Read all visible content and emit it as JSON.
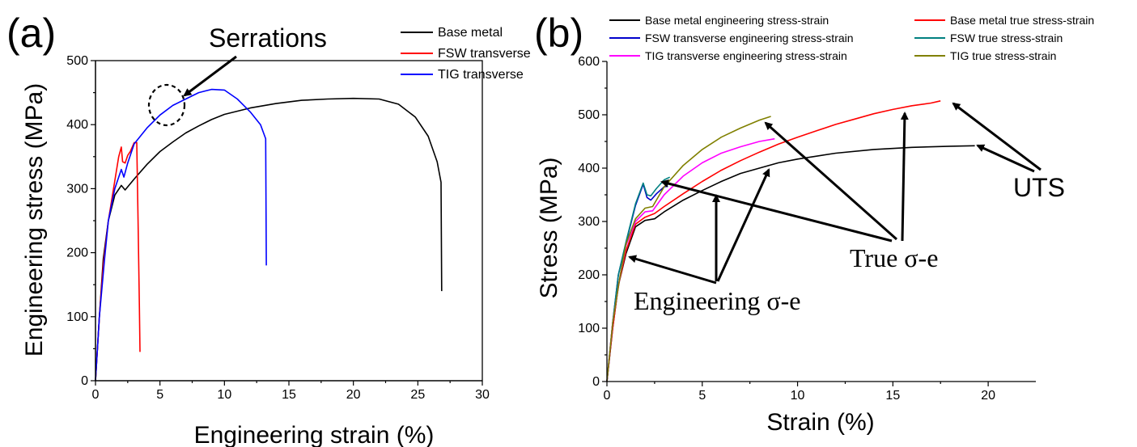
{
  "chart_data": [
    {
      "panel": "(a)",
      "type": "line",
      "xlabel": "Engineering strain (%)",
      "ylabel": "Engineering stress (MPa)",
      "xlim": [
        0,
        30
      ],
      "ylim": [
        0,
        500
      ],
      "xticks": [
        0,
        5,
        10,
        15,
        20,
        25,
        30
      ],
      "yticks": [
        0,
        100,
        200,
        300,
        400,
        500
      ],
      "legend_position": "top-right",
      "annotations": [
        "Serrations"
      ],
      "series": [
        {
          "name": "Base metal",
          "color": "#000000",
          "points": [
            [
              0,
              0
            ],
            [
              0.3,
              100
            ],
            [
              0.6,
              190
            ],
            [
              1,
              250
            ],
            [
              1.5,
              290
            ],
            [
              2,
              305
            ],
            [
              2.3,
              298
            ],
            [
              3,
              315
            ],
            [
              4,
              338
            ],
            [
              5,
              358
            ],
            [
              6,
              373
            ],
            [
              7,
              387
            ],
            [
              8,
              398
            ],
            [
              9,
              408
            ],
            [
              10,
              416
            ],
            [
              12,
              426
            ],
            [
              14,
              433
            ],
            [
              16,
              438
            ],
            [
              18,
              440
            ],
            [
              20,
              441
            ],
            [
              22,
              440
            ],
            [
              23.5,
              432
            ],
            [
              24.8,
              412
            ],
            [
              25.8,
              382
            ],
            [
              26.5,
              342
            ],
            [
              26.8,
              310
            ],
            [
              26.85,
              140
            ]
          ]
        },
        {
          "name": "FSW transverse",
          "color": "#ff0000",
          "points": [
            [
              0,
              0
            ],
            [
              0.3,
              100
            ],
            [
              0.6,
              180
            ],
            [
              1,
              250
            ],
            [
              1.4,
              300
            ],
            [
              1.8,
              350
            ],
            [
              2,
              365
            ],
            [
              2.1,
              342
            ],
            [
              2.3,
              340
            ],
            [
              2.5,
              352
            ],
            [
              2.7,
              358
            ],
            [
              3,
              372
            ],
            [
              3.2,
              372
            ],
            [
              3.3,
              250
            ],
            [
              3.4,
              120
            ],
            [
              3.45,
              45
            ]
          ]
        },
        {
          "name": "TIG transverse",
          "color": "#0000ff",
          "points": [
            [
              0,
              0
            ],
            [
              0.3,
              100
            ],
            [
              0.7,
              190
            ],
            [
              1,
              250
            ],
            [
              1.5,
              300
            ],
            [
              2,
              330
            ],
            [
              2.2,
              318
            ],
            [
              2.5,
              340
            ],
            [
              3,
              370
            ],
            [
              4,
              395
            ],
            [
              5,
              415
            ],
            [
              6,
              430
            ],
            [
              7,
              440
            ],
            [
              8,
              450
            ],
            [
              9,
              455
            ],
            [
              10,
              454
            ],
            [
              11,
              440
            ],
            [
              12,
              420
            ],
            [
              12.8,
              400
            ],
            [
              13.2,
              378
            ],
            [
              13.25,
              180
            ]
          ]
        }
      ]
    },
    {
      "panel": "(b)",
      "type": "line",
      "xlabel": "Strain (%)",
      "ylabel": "Stress (MPa)",
      "xlim": [
        0,
        22.5
      ],
      "ylim": [
        0,
        600
      ],
      "xticks": [
        0,
        5,
        10,
        15,
        20
      ],
      "yticks": [
        0,
        100,
        200,
        300,
        400,
        500,
        600
      ],
      "legend_position": "top",
      "annotations": [
        "UTS",
        "True σ-e",
        "Engineering σ-e"
      ],
      "series": [
        {
          "name": "Base metal engineering stress-strain",
          "color": "#000000",
          "points": [
            [
              0,
              0
            ],
            [
              0.3,
              100
            ],
            [
              0.6,
              180
            ],
            [
              1,
              240
            ],
            [
              1.5,
              290
            ],
            [
              2,
              302
            ],
            [
              2.5,
              305
            ],
            [
              3,
              318
            ],
            [
              4,
              340
            ],
            [
              5,
              358
            ],
            [
              6,
              375
            ],
            [
              7,
              390
            ],
            [
              8,
              400
            ],
            [
              9,
              410
            ],
            [
              10,
              417
            ],
            [
              12,
              428
            ],
            [
              14,
              435
            ],
            [
              16,
              439
            ],
            [
              18,
              441
            ],
            [
              19.3,
              442
            ]
          ]
        },
        {
          "name": "Base metal true stress-strain",
          "color": "#ff0000",
          "points": [
            [
              0,
              0
            ],
            [
              0.3,
              100
            ],
            [
              0.6,
              180
            ],
            [
              1,
              245
            ],
            [
              1.5,
              295
            ],
            [
              2,
              308
            ],
            [
              2.5,
              315
            ],
            [
              3,
              328
            ],
            [
              4,
              352
            ],
            [
              5,
              375
            ],
            [
              6,
              396
            ],
            [
              7,
              414
            ],
            [
              8,
              430
            ],
            [
              9,
              445
            ],
            [
              10,
              458
            ],
            [
              11,
              470
            ],
            [
              12,
              482
            ],
            [
              13,
              492
            ],
            [
              14,
              502
            ],
            [
              15,
              510
            ],
            [
              16,
              517
            ],
            [
              17,
              522
            ],
            [
              17.5,
              526
            ]
          ]
        },
        {
          "name": "FSW transverse engineering stress-strain",
          "color": "#0000cc",
          "points": [
            [
              0,
              0
            ],
            [
              0.3,
              110
            ],
            [
              0.6,
              200
            ],
            [
              1,
              260
            ],
            [
              1.5,
              330
            ],
            [
              1.9,
              370
            ],
            [
              2.1,
              345
            ],
            [
              2.3,
              340
            ],
            [
              2.6,
              352
            ],
            [
              3,
              365
            ],
            [
              3.2,
              366
            ]
          ]
        },
        {
          "name": "FSW true stress-strain",
          "color": "#008080",
          "points": [
            [
              0,
              0
            ],
            [
              0.3,
              110
            ],
            [
              0.6,
              200
            ],
            [
              1,
              262
            ],
            [
              1.5,
              333
            ],
            [
              1.9,
              372
            ],
            [
              2.1,
              350
            ],
            [
              2.3,
              348
            ],
            [
              2.6,
              362
            ],
            [
              3,
              378
            ],
            [
              3.3,
              383
            ]
          ]
        },
        {
          "name": "TIG transverse engineering stress-strain",
          "color": "#ff00ff",
          "points": [
            [
              0,
              0
            ],
            [
              0.3,
              110
            ],
            [
              0.7,
              200
            ],
            [
              1,
              255
            ],
            [
              1.5,
              300
            ],
            [
              2,
              318
            ],
            [
              2.4,
              320
            ],
            [
              3,
              350
            ],
            [
              4,
              385
            ],
            [
              5,
              410
            ],
            [
              6,
              428
            ],
            [
              7,
              440
            ],
            [
              8,
              450
            ],
            [
              8.8,
              455
            ]
          ]
        },
        {
          "name": "TIG true stress-strain",
          "color": "#808000",
          "points": [
            [
              0,
              0
            ],
            [
              0.3,
              110
            ],
            [
              0.7,
              200
            ],
            [
              1,
              258
            ],
            [
              1.5,
              305
            ],
            [
              2,
              325
            ],
            [
              2.4,
              328
            ],
            [
              3,
              365
            ],
            [
              4,
              405
            ],
            [
              5,
              435
            ],
            [
              6,
              458
            ],
            [
              7,
              475
            ],
            [
              8,
              490
            ],
            [
              8.6,
              497
            ]
          ]
        }
      ]
    }
  ]
}
